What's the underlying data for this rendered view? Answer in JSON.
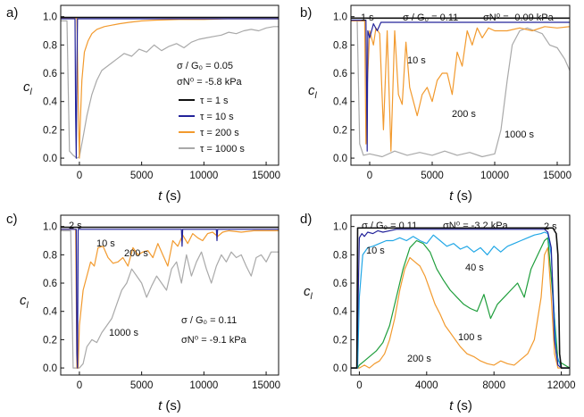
{
  "chart_data": [
    {
      "type": "line",
      "panel_label": "a)",
      "xlabel_italic": "t",
      "xlabel_unit": "(s)",
      "ylabel": "c",
      "ylabel_sub": "l",
      "xlim": [
        -1500,
        16000
      ],
      "ylim": [
        -0.05,
        1.08
      ],
      "xticks": [
        0,
        5000,
        10000,
        15000
      ],
      "xtick_labels": [
        "0",
        "5000",
        "10000",
        "15000"
      ],
      "yticks": [
        0.0,
        0.2,
        0.4,
        0.6,
        0.8,
        1.0
      ],
      "ytick_labels": [
        "0.0",
        "0.2",
        "0.4",
        "0.6",
        "0.8",
        "1.0"
      ],
      "params": [
        "σ / G₀ = 0.05",
        "σN⁰ = -5.8 kPa"
      ],
      "legend": [
        {
          "label": "τ = 1 s",
          "color": "#111111"
        },
        {
          "label": "τ = 10 s",
          "color": "#23239a"
        },
        {
          "label": "τ = 200 s",
          "color": "#f29a2e"
        },
        {
          "label": "τ = 1000 s",
          "color": "#a9a9a9"
        }
      ],
      "series": [
        {
          "name": "1000 s",
          "color": "#a9a9a9",
          "x": [
            -1500,
            -1000,
            -900,
            -800,
            -500,
            -200,
            0,
            300,
            600,
            1000,
            1400,
            1800,
            2400,
            3000,
            3600,
            4200,
            4800,
            5400,
            6000,
            6600,
            7200,
            7800,
            8400,
            9000,
            9600,
            10200,
            10800,
            11400,
            12000,
            12600,
            13200,
            13800,
            14400,
            15000,
            15600,
            16000
          ],
          "y": [
            0.97,
            0.97,
            0.5,
            0.05,
            0.02,
            0.0,
            0.01,
            0.15,
            0.3,
            0.45,
            0.55,
            0.62,
            0.66,
            0.7,
            0.74,
            0.72,
            0.77,
            0.75,
            0.8,
            0.76,
            0.79,
            0.81,
            0.78,
            0.82,
            0.84,
            0.85,
            0.86,
            0.87,
            0.89,
            0.88,
            0.9,
            0.91,
            0.9,
            0.92,
            0.93,
            0.93
          ]
        },
        {
          "name": "200 s",
          "color": "#f29a2e",
          "x": [
            -1500,
            -200,
            -50,
            0,
            50,
            200,
            400,
            700,
            1000,
            1400,
            2000,
            2600,
            3200,
            4000,
            5000,
            6000,
            8000,
            10000,
            12000,
            14000,
            16000
          ],
          "y": [
            0.99,
            0.99,
            0.2,
            0.0,
            0.2,
            0.55,
            0.75,
            0.83,
            0.88,
            0.91,
            0.93,
            0.94,
            0.95,
            0.96,
            0.97,
            0.975,
            0.98,
            0.98,
            0.985,
            0.985,
            0.985
          ]
        },
        {
          "name": "10 s",
          "color": "#23239a",
          "x": [
            -1500,
            -350,
            -300,
            -250,
            -200,
            -150,
            16000
          ],
          "y": [
            0.985,
            0.985,
            0.3,
            0.0,
            0.6,
            0.985,
            0.985
          ]
        },
        {
          "name": "1 s",
          "color": "#111111",
          "x": [
            -1500,
            16000
          ],
          "y": [
            0.995,
            0.995
          ]
        }
      ]
    },
    {
      "type": "line",
      "panel_label": "b)",
      "xlabel_italic": "t",
      "xlabel_unit": "(s)",
      "ylabel": "c",
      "ylabel_sub": "l",
      "xlim": [
        -1500,
        16000
      ],
      "ylim": [
        -0.05,
        1.08
      ],
      "xticks": [
        0,
        5000,
        10000,
        15000
      ],
      "xtick_labels": [
        "0",
        "5000",
        "10000",
        "15000"
      ],
      "yticks": [
        0.0,
        0.2,
        0.4,
        0.6,
        0.8,
        1.0
      ],
      "ytick_labels": [
        "0.0",
        "0.2",
        "0.4",
        "0.6",
        "0.8",
        "1.0"
      ],
      "params": [
        "σ / G₀ = 0.11",
        "σN⁰ = -0.09 kPa"
      ],
      "labels": [
        "1 s",
        "10 s",
        "200 s",
        "1000 s"
      ],
      "series": [
        {
          "name": "1000 s",
          "color": "#a9a9a9",
          "x": [
            -1500,
            -1000,
            -800,
            -500,
            0,
            1000,
            2000,
            3000,
            4000,
            5000,
            6000,
            7000,
            8000,
            9000,
            10000,
            10500,
            11000,
            11400,
            12000,
            12600,
            13200,
            13800,
            14400,
            15000,
            15600,
            16000
          ],
          "y": [
            0.97,
            0.97,
            0.1,
            0.02,
            0.03,
            0.01,
            0.05,
            0.02,
            0.04,
            0.02,
            0.05,
            0.02,
            0.04,
            0.01,
            0.03,
            0.2,
            0.55,
            0.8,
            0.9,
            0.92,
            0.9,
            0.88,
            0.8,
            0.78,
            0.7,
            0.62
          ]
        },
        {
          "name": "200 s",
          "color": "#f29a2e",
          "x": [
            -1500,
            -400,
            -300,
            -200,
            0,
            300,
            500,
            800,
            1100,
            1400,
            1700,
            2000,
            2300,
            2600,
            2900,
            3200,
            3500,
            3800,
            4200,
            4600,
            5000,
            5400,
            5800,
            6200,
            6600,
            7000,
            7400,
            7800,
            8200,
            8600,
            9000,
            9500,
            10000,
            11000,
            12000,
            13000,
            14000,
            15000,
            16000
          ],
          "y": [
            0.97,
            0.97,
            0.1,
            0.5,
            0.9,
            0.8,
            0.92,
            0.88,
            0.2,
            0.9,
            0.05,
            0.9,
            0.45,
            0.38,
            0.82,
            0.5,
            0.4,
            0.3,
            0.45,
            0.5,
            0.4,
            0.55,
            0.6,
            0.6,
            0.45,
            0.75,
            0.65,
            0.9,
            0.8,
            0.92,
            0.85,
            0.92,
            0.9,
            0.9,
            0.92,
            0.9,
            0.93,
            0.92,
            0.93
          ]
        },
        {
          "name": "10 s",
          "color": "#23239a",
          "x": [
            -1500,
            -300,
            -250,
            -200,
            -150,
            0,
            300,
            600,
            900,
            16000
          ],
          "y": [
            0.975,
            0.975,
            0.5,
            0.05,
            0.9,
            0.85,
            0.95,
            0.9,
            0.96,
            0.96
          ]
        },
        {
          "name": "1 s",
          "color": "#111111",
          "x": [
            -1500,
            16000
          ],
          "y": [
            0.99,
            0.99
          ]
        }
      ]
    },
    {
      "type": "line",
      "panel_label": "c)",
      "xlabel_italic": "t",
      "xlabel_unit": "(s)",
      "ylabel": "c",
      "ylabel_sub": "l",
      "xlim": [
        -1500,
        16000
      ],
      "ylim": [
        -0.05,
        1.08
      ],
      "xticks": [
        0,
        5000,
        10000,
        15000
      ],
      "xtick_labels": [
        "0",
        "5000",
        "10000",
        "15000"
      ],
      "yticks": [
        0.0,
        0.2,
        0.4,
        0.6,
        0.8,
        1.0
      ],
      "ytick_labels": [
        "0.0",
        "0.2",
        "0.4",
        "0.6",
        "0.8",
        "1.0"
      ],
      "params": [
        "σ / G₀ = 0.11",
        "σN⁰ = -9.1 kPa"
      ],
      "labels": [
        "2 s",
        "10 s",
        "200 s",
        "1000 s"
      ],
      "series": [
        {
          "name": "1000 s",
          "color": "#a9a9a9",
          "x": [
            -1500,
            -700,
            -500,
            0,
            300,
            600,
            1000,
            1400,
            1800,
            2200,
            2600,
            3000,
            3400,
            3800,
            4200,
            4600,
            5000,
            5400,
            5800,
            6200,
            6600,
            7000,
            7400,
            7800,
            8200,
            8600,
            9000,
            9400,
            9800,
            10200,
            10600,
            11000,
            11400,
            11800,
            12200,
            12600,
            13000,
            13400,
            13800,
            14200,
            14600,
            15000,
            15400,
            16000
          ],
          "y": [
            0.97,
            0.97,
            0.0,
            0.0,
            0.03,
            0.15,
            0.2,
            0.18,
            0.25,
            0.3,
            0.35,
            0.45,
            0.55,
            0.6,
            0.7,
            0.65,
            0.6,
            0.5,
            0.58,
            0.65,
            0.6,
            0.55,
            0.7,
            0.75,
            0.6,
            0.8,
            0.65,
            0.75,
            0.82,
            0.7,
            0.6,
            0.72,
            0.8,
            0.75,
            0.82,
            0.78,
            0.8,
            0.72,
            0.65,
            0.78,
            0.8,
            0.75,
            0.82,
            0.82
          ]
        },
        {
          "name": "200 s",
          "color": "#f29a2e",
          "x": [
            -1500,
            -300,
            -200,
            -100,
            0,
            300,
            600,
            900,
            1200,
            1500,
            1900,
            2300,
            2700,
            3100,
            3500,
            3900,
            4300,
            4700,
            5100,
            5500,
            5900,
            6300,
            6700,
            7100,
            7500,
            7900,
            8300,
            8700,
            9100,
            9500,
            9900,
            10300,
            10700,
            11100,
            11500,
            12000,
            13000,
            14000,
            15000,
            16000
          ],
          "y": [
            0.98,
            0.98,
            0.0,
            0.0,
            0.3,
            0.55,
            0.65,
            0.75,
            0.72,
            0.85,
            0.86,
            0.78,
            0.74,
            0.75,
            0.78,
            0.72,
            0.85,
            0.8,
            0.82,
            0.83,
            0.78,
            0.88,
            0.8,
            0.72,
            0.9,
            0.86,
            0.94,
            0.88,
            0.95,
            0.92,
            0.9,
            0.95,
            0.96,
            0.93,
            0.96,
            0.97,
            0.96,
            0.97,
            0.97,
            0.97
          ]
        },
        {
          "name": "10 s",
          "color": "#23239a",
          "x": [
            -1500,
            -250,
            -200,
            -150,
            -100,
            8200,
            8250,
            8300,
            11000,
            11050,
            11100,
            16000
          ],
          "y": [
            0.98,
            0.98,
            0.1,
            0.0,
            0.98,
            0.98,
            0.86,
            0.98,
            0.98,
            0.9,
            0.98,
            0.98
          ]
        },
        {
          "name": "2 s",
          "color": "#111111",
          "x": [
            -1500,
            16000
          ],
          "y": [
            0.995,
            0.995
          ]
        }
      ]
    },
    {
      "type": "line",
      "panel_label": "d)",
      "xlabel_italic": "t",
      "xlabel_unit": "(s)",
      "ylabel": "c",
      "ylabel_sub": "l",
      "xlim": [
        -500,
        12500
      ],
      "ylim": [
        -0.05,
        1.08
      ],
      "xticks": [
        0,
        4000,
        8000,
        12000
      ],
      "xtick_labels": [
        "0",
        "4000",
        "8000",
        "12000"
      ],
      "yticks": [
        0.0,
        0.2,
        0.4,
        0.6,
        0.8,
        1.0
      ],
      "ytick_labels": [
        "0.0",
        "0.2",
        "0.4",
        "0.6",
        "0.8",
        "1.0"
      ],
      "params": [
        "σ / G₀ = 0.11",
        "σN⁰ = -3.2 kPa"
      ],
      "labels": [
        "2 s",
        "10 s",
        "40 s",
        "100 s",
        "200 s"
      ],
      "series": [
        {
          "name": "200 s",
          "color": "#f29a2e",
          "x": [
            -500,
            -100,
            0,
            300,
            600,
            900,
            1200,
            1500,
            1800,
            2100,
            2400,
            2700,
            3000,
            3300,
            3600,
            3900,
            4200,
            4500,
            4800,
            5100,
            5400,
            5700,
            6000,
            6400,
            6800,
            7200,
            7600,
            8000,
            8400,
            8800,
            9200,
            9600,
            10000,
            10400,
            10800,
            11000,
            11200,
            11400,
            11600,
            11800,
            12500
          ],
          "y": [
            0.0,
            0.0,
            0.0,
            0.02,
            0.0,
            0.03,
            0.05,
            0.1,
            0.2,
            0.35,
            0.55,
            0.7,
            0.78,
            0.75,
            0.72,
            0.65,
            0.55,
            0.45,
            0.38,
            0.3,
            0.25,
            0.2,
            0.15,
            0.1,
            0.08,
            0.05,
            0.03,
            0.02,
            0.05,
            0.03,
            0.02,
            0.06,
            0.1,
            0.2,
            0.5,
            0.8,
            0.85,
            0.5,
            0.1,
            0.0,
            0.0
          ]
        },
        {
          "name": "100 s",
          "color": "#1f9e3c",
          "x": [
            -500,
            -100,
            0,
            300,
            600,
            1000,
            1400,
            1800,
            2200,
            2600,
            3000,
            3400,
            3800,
            4200,
            4600,
            5000,
            5400,
            5800,
            6200,
            6600,
            7000,
            7400,
            7800,
            8200,
            8600,
            9000,
            9400,
            9800,
            10200,
            10600,
            11000,
            11200,
            11500,
            11800,
            12500
          ],
          "y": [
            0.0,
            0.0,
            0.02,
            0.05,
            0.08,
            0.12,
            0.18,
            0.3,
            0.5,
            0.7,
            0.85,
            0.9,
            0.88,
            0.82,
            0.7,
            0.62,
            0.55,
            0.5,
            0.45,
            0.42,
            0.4,
            0.52,
            0.35,
            0.45,
            0.5,
            0.55,
            0.6,
            0.5,
            0.7,
            0.8,
            0.9,
            0.92,
            0.5,
            0.05,
            0.0
          ]
        },
        {
          "name": "40 s",
          "color": "#21a7e6",
          "x": [
            -500,
            -100,
            0,
            200,
            500,
            800,
            1200,
            1600,
            2000,
            2400,
            2800,
            3200,
            3600,
            4000,
            4400,
            4800,
            5200,
            5600,
            6000,
            6400,
            6800,
            7200,
            7600,
            8000,
            8400,
            8800,
            9200,
            9600,
            10000,
            10400,
            10800,
            11000,
            11200,
            11400,
            11700,
            12000,
            12500
          ],
          "y": [
            0.0,
            0.0,
            0.5,
            0.8,
            0.85,
            0.86,
            0.88,
            0.9,
            0.9,
            0.92,
            0.9,
            0.93,
            0.9,
            0.88,
            0.94,
            0.9,
            0.86,
            0.88,
            0.84,
            0.86,
            0.82,
            0.85,
            0.8,
            0.86,
            0.82,
            0.86,
            0.88,
            0.9,
            0.92,
            0.94,
            0.95,
            0.96,
            0.95,
            0.8,
            0.1,
            0.0,
            0.0
          ]
        },
        {
          "name": "10 s",
          "color": "#23239a",
          "x": [
            -500,
            -150,
            -100,
            0,
            150,
            300,
            500,
            800,
            1100,
            1400,
            1800,
            2200,
            11000,
            11200,
            11400,
            11600,
            11800,
            12000,
            12500
          ],
          "y": [
            0.0,
            0.0,
            0.3,
            0.92,
            0.95,
            0.93,
            0.96,
            0.95,
            0.97,
            0.96,
            0.97,
            0.98,
            0.98,
            0.96,
            0.85,
            0.2,
            0.02,
            0.0,
            0.0
          ]
        },
        {
          "name": "2 s",
          "color": "#111111",
          "x": [
            -500,
            -150,
            -100,
            11500,
            11600,
            11700,
            11800,
            11900,
            12000,
            12500
          ],
          "y": [
            0.0,
            0.0,
            0.99,
            0.99,
            0.97,
            0.95,
            0.8,
            0.1,
            0.0,
            0.0
          ]
        }
      ]
    }
  ]
}
